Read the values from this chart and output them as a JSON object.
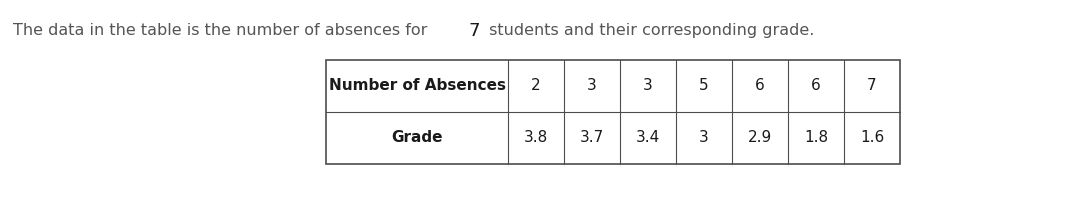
{
  "title_prefix": "The data in the table is the number of absences for ",
  "title_bold_num": "7",
  "title_suffix": " students and their corresponding grade.",
  "row1_label": "Number of Absences",
  "row2_label": "Grade",
  "row1_values": [
    "2",
    "3",
    "3",
    "5",
    "6",
    "6",
    "7"
  ],
  "row2_values": [
    "3.8",
    "3.7",
    "3.4",
    "3",
    "2.9",
    "1.8",
    "1.6"
  ],
  "background_color": "#ffffff",
  "table_border_color": "#4d4d4d",
  "text_color": "#555555",
  "label_color": "#1a1a1a",
  "title_fontsize": 11.5,
  "table_fontsize": 11,
  "fig_width": 10.69,
  "fig_height": 2.2,
  "dpi": 100
}
